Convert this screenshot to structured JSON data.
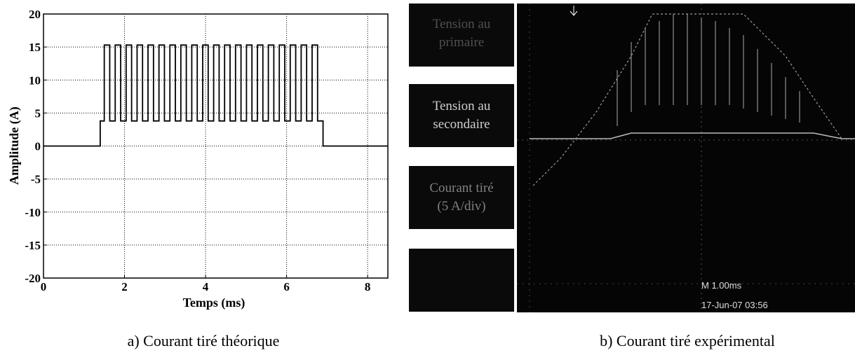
{
  "chart_data": {
    "type": "line",
    "xlabel": "Temps (ms)",
    "ylabel": "Amplitude (A)",
    "caption": "a) Courant tiré théorique",
    "xlim": [
      0,
      8.5
    ],
    "ylim": [
      -20,
      20
    ],
    "xticks": [
      0,
      2,
      4,
      6,
      8
    ],
    "yticks": [
      -20,
      -15,
      -10,
      -5,
      0,
      5,
      10,
      15,
      20
    ],
    "grid": true,
    "series": [
      {
        "color": "#000000",
        "x": [
          0,
          1.4,
          1.4,
          1.5,
          1.5,
          1.635,
          1.635,
          1.77,
          1.77,
          1.905,
          1.905,
          2.04,
          2.04,
          2.175,
          2.175,
          2.31,
          2.31,
          2.445,
          2.445,
          2.58,
          2.58,
          2.715,
          2.715,
          2.85,
          2.85,
          2.985,
          2.985,
          3.12,
          3.12,
          3.255,
          3.255,
          3.39,
          3.39,
          3.525,
          3.525,
          3.66,
          3.66,
          3.795,
          3.795,
          3.93,
          3.93,
          4.065,
          4.065,
          4.2,
          4.2,
          4.335,
          4.335,
          4.47,
          4.47,
          4.605,
          4.605,
          4.74,
          4.74,
          4.875,
          4.875,
          5.01,
          5.01,
          5.145,
          5.145,
          5.28,
          5.28,
          5.415,
          5.415,
          5.55,
          5.55,
          5.685,
          5.685,
          5.82,
          5.82,
          5.955,
          5.955,
          6.09,
          6.09,
          6.225,
          6.225,
          6.36,
          6.36,
          6.495,
          6.495,
          6.63,
          6.63,
          6.765,
          6.765,
          6.9,
          6.9,
          8.5
        ],
        "values": [
          0,
          0,
          3.8,
          3.8,
          15.3,
          15.3,
          3.8,
          3.8,
          15.3,
          15.3,
          3.8,
          3.8,
          15.3,
          15.3,
          3.8,
          3.8,
          15.3,
          15.3,
          3.8,
          3.8,
          15.3,
          15.3,
          3.8,
          3.8,
          15.3,
          15.3,
          3.8,
          3.8,
          15.3,
          15.3,
          3.8,
          3.8,
          15.3,
          15.3,
          3.8,
          3.8,
          15.3,
          15.3,
          3.8,
          3.8,
          15.3,
          15.3,
          3.8,
          3.8,
          15.3,
          15.3,
          3.8,
          3.8,
          15.3,
          15.3,
          3.8,
          3.8,
          15.3,
          15.3,
          3.8,
          3.8,
          15.3,
          15.3,
          3.8,
          3.8,
          15.3,
          15.3,
          3.8,
          3.8,
          15.3,
          15.3,
          3.8,
          3.8,
          15.3,
          15.3,
          3.8,
          3.8,
          15.3,
          15.3,
          3.8,
          3.8,
          15.3,
          15.3,
          3.8,
          3.8,
          15.3,
          15.3,
          3.8,
          3.8,
          0,
          0
        ]
      }
    ]
  },
  "scope": {
    "labels": [
      {
        "line1": "Tension au",
        "line2": "primaire"
      },
      {
        "line1": "Tension au",
        "line2": "secondaire"
      },
      {
        "line1": "Courant tiré",
        "line2": "(5 A/div)"
      }
    ],
    "timebase": "M 1.00ms",
    "date": "17-Jun-07 03:56",
    "caption": "b) Courant tiré expérimental"
  }
}
